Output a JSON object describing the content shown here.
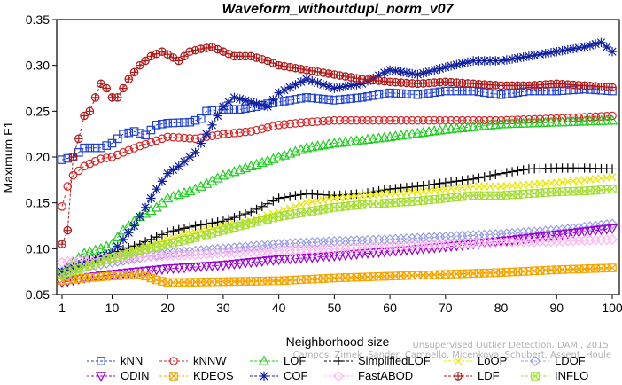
{
  "chart_data": {
    "type": "line",
    "title": "Waveform_withoutdupl_norm_v07",
    "xlabel": "Neighborhood size",
    "ylabel": "Maximum F1",
    "xlim": [
      1,
      100
    ],
    "ylim": [
      0.05,
      0.35
    ],
    "x_ticks": [
      1,
      10,
      20,
      30,
      40,
      50,
      60,
      70,
      80,
      90,
      100
    ],
    "y_ticks": [
      0.05,
      0.1,
      0.15,
      0.2,
      0.25,
      0.3,
      0.35
    ],
    "x_tick_labels": [
      "1",
      "10",
      "20",
      "30",
      "40",
      "50",
      "60",
      "70",
      "80",
      "90",
      "100"
    ],
    "y_tick_labels": [
      "0.05",
      "0.10",
      "0.15",
      "0.20",
      "0.25",
      "0.30",
      "0.35"
    ],
    "grid": false,
    "legend_position": "bottom",
    "watermark": [
      "Unsupervised Outlier Detection. DAMI, 2015.",
      "Campos, Zimek, Sander, Campello, Micenkova, Schubert, Assent, Houle"
    ],
    "series": [
      {
        "name": "kNN",
        "color": "#1f3fd6",
        "marker": "square",
        "points": [
          [
            1,
            0.197
          ],
          [
            3,
            0.2
          ],
          [
            5,
            0.21
          ],
          [
            8,
            0.21
          ],
          [
            10,
            0.215
          ],
          [
            12,
            0.225
          ],
          [
            14,
            0.228
          ],
          [
            16,
            0.224
          ],
          [
            18,
            0.235
          ],
          [
            20,
            0.237
          ],
          [
            24,
            0.238
          ],
          [
            26,
            0.242
          ],
          [
            27,
            0.25
          ],
          [
            30,
            0.252
          ],
          [
            33,
            0.252
          ],
          [
            36,
            0.255
          ],
          [
            38,
            0.258
          ],
          [
            40,
            0.26
          ],
          [
            45,
            0.265
          ],
          [
            50,
            0.262
          ],
          [
            55,
            0.265
          ],
          [
            60,
            0.27
          ],
          [
            65,
            0.268
          ],
          [
            70,
            0.272
          ],
          [
            75,
            0.272
          ],
          [
            80,
            0.268
          ],
          [
            85,
            0.272
          ],
          [
            90,
            0.272
          ],
          [
            95,
            0.274
          ],
          [
            100,
            0.272
          ]
        ]
      },
      {
        "name": "kNNW",
        "color": "#d62728",
        "marker": "circle",
        "points": [
          [
            1,
            0.146
          ],
          [
            2,
            0.168
          ],
          [
            3,
            0.18
          ],
          [
            5,
            0.19
          ],
          [
            8,
            0.198
          ],
          [
            10,
            0.2
          ],
          [
            12,
            0.205
          ],
          [
            15,
            0.212
          ],
          [
            18,
            0.218
          ],
          [
            20,
            0.222
          ],
          [
            25,
            0.22
          ],
          [
            30,
            0.225
          ],
          [
            35,
            0.228
          ],
          [
            40,
            0.235
          ],
          [
            45,
            0.238
          ],
          [
            50,
            0.24
          ],
          [
            60,
            0.24
          ],
          [
            70,
            0.24
          ],
          [
            80,
            0.24
          ],
          [
            90,
            0.242
          ],
          [
            100,
            0.245
          ]
        ]
      },
      {
        "name": "LOF",
        "color": "#22cc22",
        "marker": "triangle",
        "points": [
          [
            1,
            0.075
          ],
          [
            3,
            0.085
          ],
          [
            5,
            0.095
          ],
          [
            8,
            0.1
          ],
          [
            10,
            0.105
          ],
          [
            12,
            0.12
          ],
          [
            15,
            0.135
          ],
          [
            18,
            0.145
          ],
          [
            20,
            0.155
          ],
          [
            25,
            0.165
          ],
          [
            30,
            0.18
          ],
          [
            35,
            0.19
          ],
          [
            40,
            0.2
          ],
          [
            45,
            0.21
          ],
          [
            50,
            0.215
          ],
          [
            60,
            0.222
          ],
          [
            70,
            0.23
          ],
          [
            80,
            0.236
          ],
          [
            90,
            0.238
          ],
          [
            100,
            0.24
          ]
        ]
      },
      {
        "name": "SimplifiedLOF",
        "color": "#000000",
        "marker": "plus",
        "points": [
          [
            1,
            0.075
          ],
          [
            5,
            0.085
          ],
          [
            10,
            0.095
          ],
          [
            15,
            0.105
          ],
          [
            20,
            0.118
          ],
          [
            25,
            0.125
          ],
          [
            30,
            0.13
          ],
          [
            35,
            0.14
          ],
          [
            40,
            0.155
          ],
          [
            45,
            0.16
          ],
          [
            50,
            0.158
          ],
          [
            55,
            0.16
          ],
          [
            60,
            0.165
          ],
          [
            65,
            0.168
          ],
          [
            70,
            0.172
          ],
          [
            75,
            0.176
          ],
          [
            80,
            0.182
          ],
          [
            85,
            0.187
          ],
          [
            90,
            0.188
          ],
          [
            95,
            0.188
          ],
          [
            100,
            0.187
          ]
        ]
      },
      {
        "name": "LoOP",
        "color": "#e8e800",
        "marker": "x",
        "points": [
          [
            1,
            0.072
          ],
          [
            5,
            0.08
          ],
          [
            10,
            0.09
          ],
          [
            15,
            0.1
          ],
          [
            20,
            0.11
          ],
          [
            25,
            0.118
          ],
          [
            30,
            0.125
          ],
          [
            35,
            0.13
          ],
          [
            40,
            0.14
          ],
          [
            45,
            0.15
          ],
          [
            50,
            0.155
          ],
          [
            55,
            0.158
          ],
          [
            60,
            0.16
          ],
          [
            65,
            0.162
          ],
          [
            70,
            0.165
          ],
          [
            75,
            0.168
          ],
          [
            80,
            0.168
          ],
          [
            85,
            0.17
          ],
          [
            90,
            0.172
          ],
          [
            95,
            0.175
          ],
          [
            100,
            0.178
          ]
        ]
      },
      {
        "name": "LDOF",
        "color": "#9aa0e6",
        "marker": "diamond",
        "points": [
          [
            1,
            0.075
          ],
          [
            5,
            0.08
          ],
          [
            10,
            0.085
          ],
          [
            15,
            0.09
          ],
          [
            20,
            0.095
          ],
          [
            30,
            0.1
          ],
          [
            40,
            0.105
          ],
          [
            50,
            0.108
          ],
          [
            60,
            0.11
          ],
          [
            70,
            0.113
          ],
          [
            80,
            0.116
          ],
          [
            90,
            0.12
          ],
          [
            100,
            0.127
          ]
        ]
      },
      {
        "name": "ODIN",
        "color": "#9b00d3",
        "marker": "triangle-down",
        "points": [
          [
            1,
            0.063
          ],
          [
            5,
            0.068
          ],
          [
            10,
            0.072
          ],
          [
            20,
            0.078
          ],
          [
            30,
            0.082
          ],
          [
            40,
            0.088
          ],
          [
            50,
            0.092
          ],
          [
            60,
            0.097
          ],
          [
            70,
            0.102
          ],
          [
            80,
            0.108
          ],
          [
            90,
            0.115
          ],
          [
            100,
            0.122
          ]
        ]
      },
      {
        "name": "KDEOS",
        "color": "#f5a400",
        "marker": "square-x",
        "points": [
          [
            1,
            0.065
          ],
          [
            5,
            0.068
          ],
          [
            10,
            0.07
          ],
          [
            15,
            0.072
          ],
          [
            18,
            0.066
          ],
          [
            20,
            0.063
          ],
          [
            30,
            0.064
          ],
          [
            40,
            0.065
          ],
          [
            50,
            0.068
          ],
          [
            60,
            0.07
          ],
          [
            70,
            0.072
          ],
          [
            80,
            0.074
          ],
          [
            90,
            0.077
          ],
          [
            100,
            0.079
          ]
        ]
      },
      {
        "name": "COF",
        "color": "#1020a0",
        "marker": "star",
        "points": [
          [
            1,
            0.075
          ],
          [
            5,
            0.085
          ],
          [
            10,
            0.095
          ],
          [
            14,
            0.125
          ],
          [
            16,
            0.145
          ],
          [
            18,
            0.165
          ],
          [
            20,
            0.182
          ],
          [
            22,
            0.19
          ],
          [
            25,
            0.205
          ],
          [
            27,
            0.225
          ],
          [
            30,
            0.255
          ],
          [
            32,
            0.265
          ],
          [
            35,
            0.26
          ],
          [
            38,
            0.255
          ],
          [
            40,
            0.27
          ],
          [
            45,
            0.285
          ],
          [
            50,
            0.275
          ],
          [
            55,
            0.28
          ],
          [
            60,
            0.295
          ],
          [
            65,
            0.29
          ],
          [
            70,
            0.298
          ],
          [
            75,
            0.305
          ],
          [
            80,
            0.305
          ],
          [
            85,
            0.31
          ],
          [
            90,
            0.315
          ],
          [
            95,
            0.32
          ],
          [
            98,
            0.325
          ],
          [
            100,
            0.315
          ]
        ]
      },
      {
        "name": "FastABOD",
        "color": "#ffb3f0",
        "marker": "diamond",
        "points": [
          [
            1,
            0.085
          ],
          [
            5,
            0.088
          ],
          [
            10,
            0.09
          ],
          [
            20,
            0.092
          ],
          [
            30,
            0.095
          ],
          [
            40,
            0.098
          ],
          [
            50,
            0.1
          ],
          [
            60,
            0.102
          ],
          [
            70,
            0.105
          ],
          [
            80,
            0.107
          ],
          [
            90,
            0.108
          ],
          [
            100,
            0.11
          ]
        ]
      },
      {
        "name": "LDF",
        "color": "#b01818",
        "marker": "circle-plus",
        "points": [
          [
            1,
            0.105
          ],
          [
            2,
            0.12
          ],
          [
            3,
            0.2
          ],
          [
            4,
            0.22
          ],
          [
            5,
            0.245
          ],
          [
            6,
            0.25
          ],
          [
            7,
            0.265
          ],
          [
            8,
            0.28
          ],
          [
            9,
            0.275
          ],
          [
            10,
            0.265
          ],
          [
            11,
            0.265
          ],
          [
            13,
            0.285
          ],
          [
            15,
            0.3
          ],
          [
            17,
            0.31
          ],
          [
            19,
            0.315
          ],
          [
            20,
            0.312
          ],
          [
            22,
            0.305
          ],
          [
            24,
            0.315
          ],
          [
            26,
            0.318
          ],
          [
            28,
            0.32
          ],
          [
            30,
            0.315
          ],
          [
            32,
            0.31
          ],
          [
            35,
            0.31
          ],
          [
            38,
            0.305
          ],
          [
            40,
            0.3
          ],
          [
            45,
            0.295
          ],
          [
            50,
            0.29
          ],
          [
            55,
            0.285
          ],
          [
            60,
            0.282
          ],
          [
            65,
            0.28
          ],
          [
            70,
            0.282
          ],
          [
            75,
            0.28
          ],
          [
            80,
            0.278
          ],
          [
            85,
            0.278
          ],
          [
            90,
            0.28
          ],
          [
            95,
            0.278
          ],
          [
            100,
            0.276
          ]
        ]
      },
      {
        "name": "INFLO",
        "color": "#a6de38",
        "marker": "square-x",
        "points": [
          [
            1,
            0.072
          ],
          [
            5,
            0.08
          ],
          [
            10,
            0.09
          ],
          [
            15,
            0.098
          ],
          [
            20,
            0.105
          ],
          [
            25,
            0.112
          ],
          [
            30,
            0.12
          ],
          [
            35,
            0.128
          ],
          [
            40,
            0.135
          ],
          [
            45,
            0.14
          ],
          [
            50,
            0.145
          ],
          [
            55,
            0.148
          ],
          [
            60,
            0.15
          ],
          [
            65,
            0.152
          ],
          [
            70,
            0.155
          ],
          [
            75,
            0.158
          ],
          [
            80,
            0.158
          ],
          [
            85,
            0.16
          ],
          [
            90,
            0.162
          ],
          [
            95,
            0.163
          ],
          [
            100,
            0.165
          ]
        ]
      }
    ],
    "legend_rows": [
      [
        "kNN",
        "kNNW",
        "LOF",
        "SimplifiedLOF",
        "LoOP",
        "LDOF"
      ],
      [
        "ODIN",
        "KDEOS",
        "COF",
        "FastABOD",
        "LDF",
        "INFLO"
      ]
    ]
  }
}
